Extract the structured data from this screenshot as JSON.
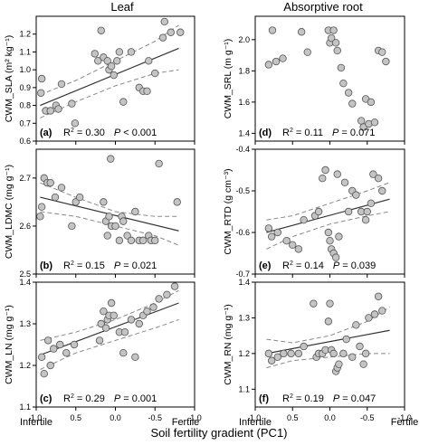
{
  "figure": {
    "col_titles": [
      "Leaf",
      "Absorptive root"
    ],
    "x_axis_label": "Soil fertility gradient (PC1)",
    "x_end_labels": [
      "Infertile",
      "Fertile"
    ]
  },
  "chart_data": [
    {
      "type": "scatter",
      "panel": "a",
      "panel_label": "(a)",
      "stats_r2": "0.30",
      "stats_p": "< 0.001",
      "ylabel": "CWM_SLA",
      "ylabel_unit": "(m² kg⁻¹)",
      "xlim": [
        1.0,
        -1.0
      ],
      "ylim": [
        0.6,
        1.3
      ],
      "xticks": [
        1.0,
        0.5,
        0.0,
        -0.5,
        -1.0
      ],
      "xtick_labels": [
        "1.0",
        "0.5",
        "0.0",
        "-0.5",
        "-1.0"
      ],
      "yticks": [
        0.6,
        0.7,
        0.8,
        0.9,
        1.0,
        1.1,
        1.2
      ],
      "ytick_labels": [
        "0.6",
        "0.7",
        "0.8",
        "0.9",
        "1.0",
        "1.1",
        "1.2"
      ],
      "fit": [
        [
          0.95,
          0.8
        ],
        [
          -0.8,
          1.12
        ]
      ],
      "ci_upper": [
        [
          0.95,
          0.86
        ],
        [
          0.5,
          0.94
        ],
        [
          0.0,
          1.05
        ],
        [
          -0.5,
          1.16
        ],
        [
          -0.8,
          1.25
        ]
      ],
      "ci_lower": [
        [
          0.95,
          0.73
        ],
        [
          0.5,
          0.82
        ],
        [
          0.0,
          0.91
        ],
        [
          -0.5,
          0.98
        ],
        [
          -0.8,
          1.0
        ]
      ],
      "points": [
        [
          0.94,
          0.87
        ],
        [
          0.93,
          0.95
        ],
        [
          0.88,
          0.77
        ],
        [
          0.82,
          0.77
        ],
        [
          0.75,
          0.8
        ],
        [
          0.72,
          0.78
        ],
        [
          0.68,
          0.92
        ],
        [
          0.55,
          0.81
        ],
        [
          0.51,
          0.7
        ],
        [
          0.26,
          1.09
        ],
        [
          0.22,
          1.05
        ],
        [
          0.18,
          1.22
        ],
        [
          0.15,
          1.07
        ],
        [
          0.1,
          1.05
        ],
        [
          0.08,
          1.0
        ],
        [
          0.05,
          1.02
        ],
        [
          0.02,
          0.97
        ],
        [
          -0.02,
          1.05
        ],
        [
          -0.05,
          1.1
        ],
        [
          -0.1,
          0.82
        ],
        [
          -0.2,
          1.1
        ],
        [
          -0.3,
          0.9
        ],
        [
          -0.35,
          0.88
        ],
        [
          -0.4,
          0.88
        ],
        [
          -0.42,
          1.05
        ],
        [
          -0.5,
          0.98
        ],
        [
          -0.6,
          1.18
        ],
        [
          -0.62,
          1.27
        ],
        [
          -0.7,
          1.21
        ],
        [
          -0.82,
          1.21
        ]
      ]
    },
    {
      "type": "scatter",
      "panel": "d",
      "panel_label": "(d)",
      "stats_r2": "0.11",
      "stats_p": "0.071",
      "ylabel": "CWM_SRL",
      "ylabel_unit": "(m g⁻¹)",
      "xlim": [
        1.0,
        -1.0
      ],
      "ylim": [
        1.35,
        2.15
      ],
      "xticks": [
        1.0,
        0.5,
        0.0,
        -0.5,
        -1.0
      ],
      "xtick_labels": [
        "1.0",
        "0.5",
        "0.0",
        "-0.5",
        "-1.0"
      ],
      "yticks": [
        1.4,
        1.6,
        1.8,
        2.0
      ],
      "ytick_labels": [
        "1.4",
        "1.6",
        "1.8",
        "2.0"
      ],
      "fit": null,
      "ci_upper": null,
      "ci_lower": null,
      "points": [
        [
          0.82,
          1.84
        ],
        [
          0.77,
          2.06
        ],
        [
          0.72,
          1.86
        ],
        [
          0.63,
          1.88
        ],
        [
          0.38,
          2.05
        ],
        [
          0.3,
          1.92
        ],
        [
          0.02,
          2.06
        ],
        [
          0.0,
          1.98
        ],
        [
          -0.02,
          2.01
        ],
        [
          -0.05,
          2.06
        ],
        [
          -0.08,
          1.98
        ],
        [
          -0.1,
          1.93
        ],
        [
          -0.15,
          1.82
        ],
        [
          -0.18,
          1.72
        ],
        [
          -0.25,
          1.66
        ],
        [
          -0.3,
          1.59
        ],
        [
          -0.42,
          1.48
        ],
        [
          -0.45,
          1.44
        ],
        [
          -0.48,
          1.62
        ],
        [
          -0.52,
          1.46
        ],
        [
          -0.55,
          1.6
        ],
        [
          -0.6,
          1.47
        ],
        [
          -0.65,
          1.93
        ],
        [
          -0.7,
          1.92
        ],
        [
          -0.75,
          1.86
        ]
      ]
    },
    {
      "type": "scatter",
      "panel": "b",
      "panel_label": "(b)",
      "stats_r2": "0.15",
      "stats_p": "0.021",
      "ylabel": "CWM_LDMC",
      "ylabel_unit": "(mg g⁻¹)",
      "xlim": [
        1.0,
        -1.0
      ],
      "ylim": [
        2.5,
        2.76
      ],
      "xticks": [
        1.0,
        0.5,
        0.0,
        -0.5,
        -1.0
      ],
      "xtick_labels": [
        "1.0",
        "0.5",
        "0.0",
        "-0.5",
        "-1.0"
      ],
      "yticks": [
        2.5,
        2.6,
        2.7
      ],
      "ytick_labels": [
        "2.5",
        "2.6",
        "2.7"
      ],
      "fit": [
        [
          0.95,
          2.66
        ],
        [
          -0.8,
          2.59
        ]
      ],
      "ci_upper": [
        [
          0.95,
          2.69
        ],
        [
          0.5,
          2.66
        ],
        [
          0.0,
          2.63
        ],
        [
          -0.5,
          2.62
        ],
        [
          -0.8,
          2.62
        ]
      ],
      "ci_lower": [
        [
          0.95,
          2.63
        ],
        [
          0.5,
          2.62
        ],
        [
          0.0,
          2.6
        ],
        [
          -0.5,
          2.58
        ],
        [
          -0.8,
          2.56
        ]
      ],
      "points": [
        [
          0.95,
          2.62
        ],
        [
          0.93,
          2.64
        ],
        [
          0.9,
          2.7
        ],
        [
          0.86,
          2.69
        ],
        [
          0.82,
          2.69
        ],
        [
          0.76,
          2.66
        ],
        [
          0.68,
          2.68
        ],
        [
          0.55,
          2.6
        ],
        [
          0.5,
          2.65
        ],
        [
          0.45,
          2.66
        ],
        [
          0.15,
          2.65
        ],
        [
          0.12,
          2.61
        ],
        [
          0.1,
          2.58
        ],
        [
          0.08,
          2.62
        ],
        [
          0.06,
          2.74
        ],
        [
          0.05,
          2.6
        ],
        [
          0.0,
          2.6
        ],
        [
          -0.05,
          2.57
        ],
        [
          -0.08,
          2.62
        ],
        [
          -0.1,
          2.61
        ],
        [
          -0.15,
          2.58
        ],
        [
          -0.2,
          2.57
        ],
        [
          -0.25,
          2.63
        ],
        [
          -0.3,
          2.57
        ],
        [
          -0.35,
          2.57
        ],
        [
          -0.42,
          2.58
        ],
        [
          -0.45,
          2.57
        ],
        [
          -0.5,
          2.57
        ],
        [
          -0.55,
          2.73
        ],
        [
          -0.78,
          2.65
        ]
      ]
    },
    {
      "type": "scatter",
      "panel": "e",
      "panel_label": "(e)",
      "stats_r2": "0.14",
      "stats_p": "0.039",
      "ylabel": "CWM_RTD",
      "ylabel_unit": "(g cm⁻³)",
      "xlim": [
        1.0,
        -1.0
      ],
      "ylim": [
        -0.7,
        -0.4
      ],
      "xticks": [
        1.0,
        0.5,
        0.0,
        -0.5,
        -1.0
      ],
      "xtick_labels": [
        "1.0",
        "0.5",
        "0.0",
        "-0.5",
        "-1.0"
      ],
      "yticks": [
        -0.7,
        -0.6,
        -0.5,
        -0.4
      ],
      "ytick_labels": [
        "-0.7",
        "-0.6",
        "-0.5",
        "-0.4"
      ],
      "fit": [
        [
          0.85,
          -0.6
        ],
        [
          -0.8,
          -0.52
        ]
      ],
      "ci_upper": [
        [
          0.85,
          -0.57
        ],
        [
          0.5,
          -0.56
        ],
        [
          0.0,
          -0.53
        ],
        [
          -0.5,
          -0.5
        ],
        [
          -0.8,
          -0.48
        ]
      ],
      "ci_lower": [
        [
          0.85,
          -0.64
        ],
        [
          0.5,
          -0.61
        ],
        [
          0.0,
          -0.58
        ],
        [
          -0.5,
          -0.56
        ],
        [
          -0.8,
          -0.55
        ]
      ],
      "points": [
        [
          0.82,
          -0.59
        ],
        [
          0.78,
          -0.61
        ],
        [
          0.7,
          -0.6
        ],
        [
          0.58,
          -0.62
        ],
        [
          0.5,
          -0.63
        ],
        [
          0.42,
          -0.64
        ],
        [
          0.35,
          -0.57
        ],
        [
          0.2,
          -0.56
        ],
        [
          0.15,
          -0.55
        ],
        [
          0.1,
          -0.47
        ],
        [
          0.06,
          -0.45
        ],
        [
          0.02,
          -0.6
        ],
        [
          0.0,
          -0.62
        ],
        [
          -0.02,
          -0.64
        ],
        [
          -0.05,
          -0.65
        ],
        [
          -0.08,
          -0.66
        ],
        [
          -0.1,
          -0.46
        ],
        [
          -0.12,
          -0.61
        ],
        [
          -0.2,
          -0.48
        ],
        [
          -0.25,
          -0.55
        ],
        [
          -0.3,
          -0.5
        ],
        [
          -0.35,
          -0.51
        ],
        [
          -0.42,
          -0.55
        ],
        [
          -0.48,
          -0.57
        ],
        [
          -0.5,
          -0.55
        ],
        [
          -0.55,
          -0.53
        ],
        [
          -0.58,
          -0.46
        ],
        [
          -0.65,
          -0.47
        ],
        [
          -0.7,
          -0.5
        ]
      ]
    },
    {
      "type": "scatter",
      "panel": "c",
      "panel_label": "(c)",
      "stats_r2": "0.29",
      "stats_p": "0.001",
      "ylabel": "CWM_LN",
      "ylabel_unit": "(mg g⁻¹)",
      "xlim": [
        1.0,
        -1.0
      ],
      "ylim": [
        1.1,
        1.4
      ],
      "xticks": [
        1.0,
        0.5,
        0.0,
        -0.5,
        -1.0
      ],
      "xtick_labels": [
        "1.0",
        "0.5",
        "0.0",
        "-0.5",
        "-1.0"
      ],
      "yticks": [
        1.1,
        1.2,
        1.3,
        1.4
      ],
      "ytick_labels": [
        "1.1",
        "1.2",
        "1.3",
        "1.4"
      ],
      "fit": [
        [
          0.95,
          1.225
        ],
        [
          -0.8,
          1.35
        ]
      ],
      "ci_upper": [
        [
          0.95,
          1.26
        ],
        [
          0.5,
          1.28
        ],
        [
          0.0,
          1.31
        ],
        [
          -0.5,
          1.35
        ],
        [
          -0.8,
          1.38
        ]
      ],
      "ci_lower": [
        [
          0.95,
          1.19
        ],
        [
          0.5,
          1.23
        ],
        [
          0.0,
          1.26
        ],
        [
          -0.5,
          1.29
        ],
        [
          -0.8,
          1.31
        ]
      ],
      "points": [
        [
          0.93,
          1.22
        ],
        [
          0.9,
          1.18
        ],
        [
          0.85,
          1.26
        ],
        [
          0.82,
          1.2
        ],
        [
          0.78,
          1.24
        ],
        [
          0.7,
          1.25
        ],
        [
          0.62,
          1.23
        ],
        [
          0.52,
          1.25
        ],
        [
          0.2,
          1.26
        ],
        [
          0.18,
          1.3
        ],
        [
          0.15,
          1.33
        ],
        [
          0.12,
          1.29
        ],
        [
          0.1,
          1.31
        ],
        [
          0.08,
          1.32
        ],
        [
          0.05,
          1.35
        ],
        [
          0.02,
          1.32
        ],
        [
          -0.05,
          1.28
        ],
        [
          -0.1,
          1.23
        ],
        [
          -0.12,
          1.28
        ],
        [
          -0.2,
          1.31
        ],
        [
          -0.25,
          1.22
        ],
        [
          -0.3,
          1.3
        ],
        [
          -0.35,
          1.32
        ],
        [
          -0.4,
          1.33
        ],
        [
          -0.48,
          1.34
        ],
        [
          -0.55,
          1.36
        ],
        [
          -0.65,
          1.37
        ],
        [
          -0.75,
          1.39
        ]
      ]
    },
    {
      "type": "scatter",
      "panel": "f",
      "panel_label": "(f)",
      "stats_r2": "0.19",
      "stats_p": "0.047",
      "ylabel": "CWM_RN",
      "ylabel_unit": "(mg g⁻¹)",
      "xlim": [
        1.0,
        -1.0
      ],
      "ylim": [
        1.05,
        1.4
      ],
      "xticks": [
        1.0,
        0.5,
        0.0,
        -0.5,
        -1.0
      ],
      "xtick_labels": [
        "1.0",
        "0.5",
        "0.0",
        "-0.5",
        "-1.0"
      ],
      "yticks": [
        1.1,
        1.2,
        1.3,
        1.4
      ],
      "ytick_labels": [
        "1.1",
        "1.2",
        "1.3",
        "1.4"
      ],
      "fit": [
        [
          0.85,
          1.2
        ],
        [
          -0.8,
          1.265
        ]
      ],
      "ci_upper": [
        [
          0.85,
          1.24
        ],
        [
          0.5,
          1.23
        ],
        [
          0.0,
          1.25
        ],
        [
          -0.5,
          1.29
        ],
        [
          -0.8,
          1.33
        ]
      ],
      "ci_lower": [
        [
          0.85,
          1.16
        ],
        [
          0.5,
          1.18
        ],
        [
          0.0,
          1.19
        ],
        [
          -0.5,
          1.2
        ],
        [
          -0.8,
          1.2
        ]
      ],
      "points": [
        [
          0.82,
          1.2
        ],
        [
          0.78,
          1.18
        ],
        [
          0.7,
          1.19
        ],
        [
          0.62,
          1.2
        ],
        [
          0.52,
          1.2
        ],
        [
          0.42,
          1.2
        ],
        [
          0.35,
          1.22
        ],
        [
          0.22,
          1.34
        ],
        [
          0.18,
          1.19
        ],
        [
          0.15,
          1.2
        ],
        [
          0.1,
          1.2
        ],
        [
          0.06,
          1.21
        ],
        [
          0.02,
          1.29
        ],
        [
          0.0,
          1.34
        ],
        [
          -0.02,
          1.21
        ],
        [
          -0.05,
          1.2
        ],
        [
          -0.08,
          1.15
        ],
        [
          -0.1,
          1.16
        ],
        [
          -0.12,
          1.17
        ],
        [
          -0.18,
          1.2
        ],
        [
          -0.22,
          1.24
        ],
        [
          -0.3,
          1.19
        ],
        [
          -0.35,
          1.28
        ],
        [
          -0.4,
          1.22
        ],
        [
          -0.45,
          1.17
        ],
        [
          -0.48,
          1.2
        ],
        [
          -0.52,
          1.3
        ],
        [
          -0.6,
          1.31
        ],
        [
          -0.65,
          1.36
        ],
        [
          -0.7,
          1.32
        ]
      ]
    }
  ]
}
